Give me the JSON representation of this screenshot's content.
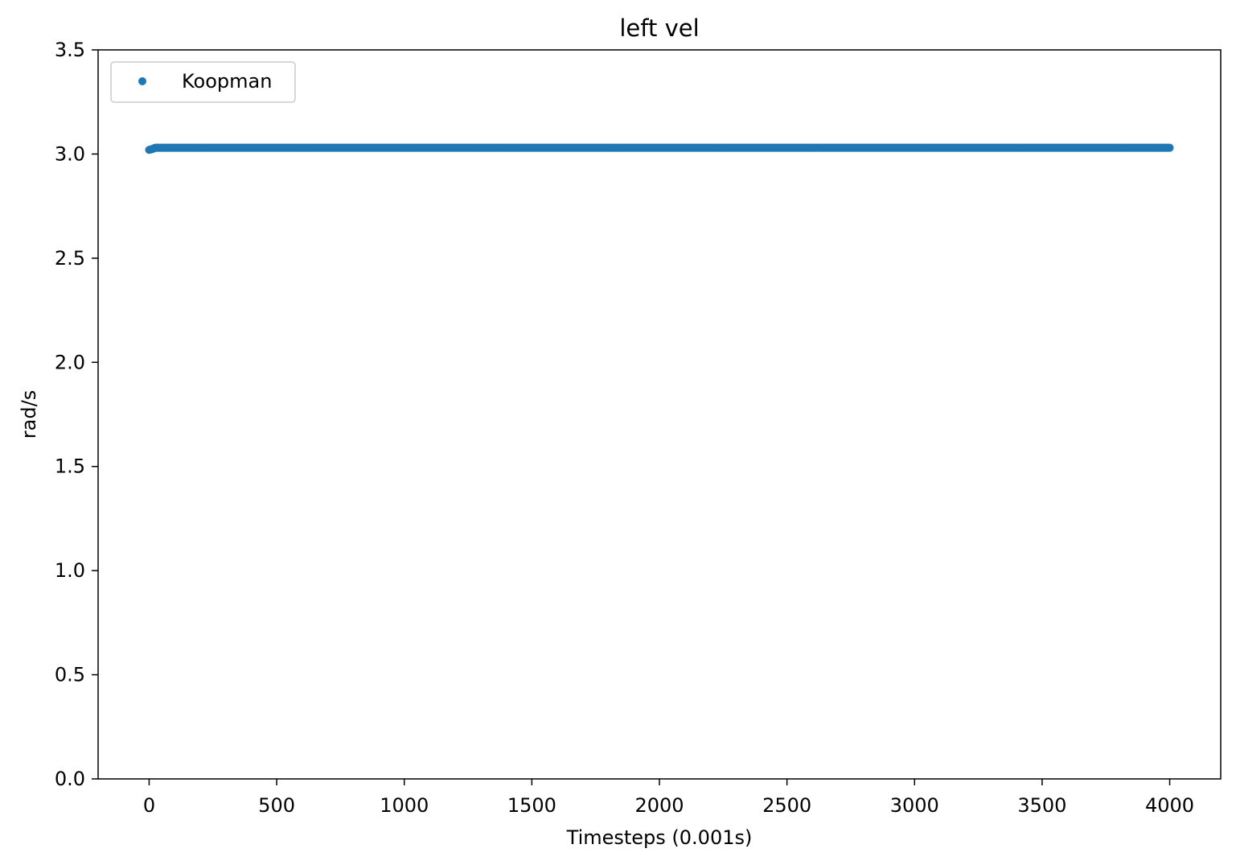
{
  "chart_data": {
    "type": "scatter",
    "title": "left vel",
    "xlabel": "Timesteps (0.001s)",
    "ylabel": "rad/s",
    "xlim": [
      -200,
      4200
    ],
    "ylim": [
      0,
      3.5
    ],
    "xticks": [
      0,
      500,
      1000,
      1500,
      2000,
      2500,
      3000,
      3500,
      4000
    ],
    "xtick_labels": [
      "0",
      "500",
      "1000",
      "1500",
      "2000",
      "2500",
      "3000",
      "3500",
      "4000"
    ],
    "yticks": [
      0.0,
      0.5,
      1.0,
      1.5,
      2.0,
      2.5,
      3.0,
      3.5
    ],
    "ytick_labels": [
      "0.0",
      "0.5",
      "1.0",
      "1.5",
      "2.0",
      "2.5",
      "3.0",
      "3.5"
    ],
    "grid": false,
    "legend_position": "upper left",
    "series": [
      {
        "name": "Koopman",
        "color": "#1f77b4",
        "marker": "circle",
        "x_range": [
          0,
          4000
        ],
        "x_step": 1,
        "initial_values": [
          {
            "x": 0,
            "y": 3.02
          },
          {
            "x": 10,
            "y": 3.023
          },
          {
            "x": 20,
            "y": 3.028
          }
        ],
        "steady_value": 3.03
      }
    ]
  }
}
